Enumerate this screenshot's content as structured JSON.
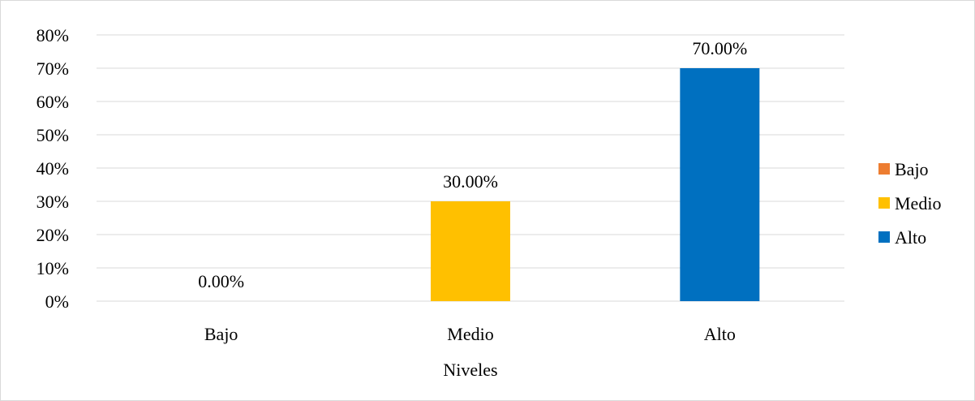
{
  "chart_data": {
    "type": "bar",
    "title": "",
    "xlabel": "Niveles",
    "ylabel": "",
    "categories": [
      "Bajo",
      "Medio",
      "Alto"
    ],
    "values": [
      0.0,
      30.0,
      70.0
    ],
    "data_labels": [
      "0.00%",
      "30.00%",
      "70.00%"
    ],
    "colors": [
      "#ed7d31",
      "#ffc000",
      "#0070c0"
    ],
    "ylim": [
      0,
      80
    ],
    "yticks": [
      0,
      10,
      20,
      30,
      40,
      50,
      60,
      70,
      80
    ],
    "ytick_labels": [
      "0%",
      "10%",
      "20%",
      "30%",
      "40%",
      "50%",
      "60%",
      "70%",
      "80%"
    ],
    "grid": true,
    "legend": {
      "placement": "right",
      "entries": [
        {
          "name": "Bajo",
          "color": "#ed7d31"
        },
        {
          "name": "Medio",
          "color": "#ffc000"
        },
        {
          "name": "Alto",
          "color": "#0070c0"
        }
      ]
    }
  }
}
